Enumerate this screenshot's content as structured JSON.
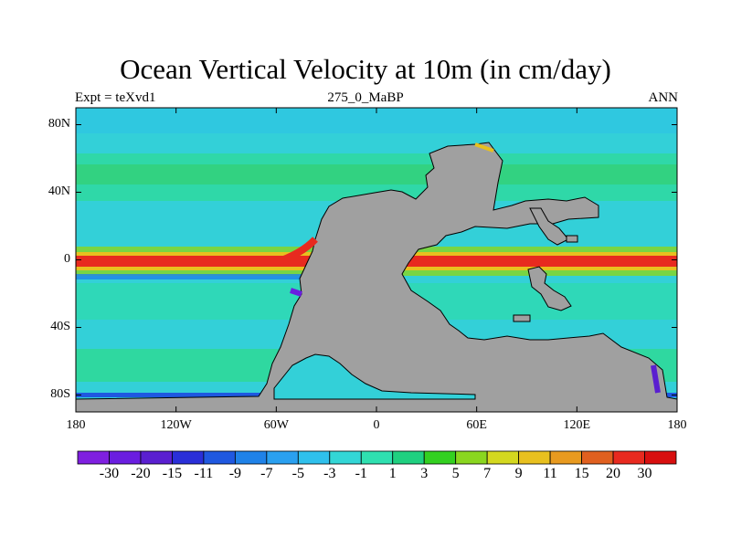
{
  "title": "Ocean Vertical Velocity at 10m (in cm/day)",
  "left_label": "Expt = teXvd1",
  "center_label": "275_0_MaBP",
  "right_label": "ANN",
  "y_ticks": [
    {
      "lat": 80,
      "label": "80N"
    },
    {
      "lat": 40,
      "label": "40N"
    },
    {
      "lat": 0,
      "label": "0"
    },
    {
      "lat": -40,
      "label": "40S"
    },
    {
      "lat": -80,
      "label": "80S"
    }
  ],
  "x_ticks": [
    {
      "lon": -180,
      "label": "180"
    },
    {
      "lon": -120,
      "label": "120W"
    },
    {
      "lon": -60,
      "label": "60W"
    },
    {
      "lon": 0,
      "label": "0"
    },
    {
      "lon": 60,
      "label": "60E"
    },
    {
      "lon": 120,
      "label": "120E"
    },
    {
      "lon": 180,
      "label": "180"
    }
  ],
  "colorbar": {
    "labels": [
      "-30",
      "-20",
      "-15",
      "-11",
      "-9",
      "-7",
      "-5",
      "-3",
      "-1",
      "1",
      "3",
      "5",
      "7",
      "9",
      "11",
      "15",
      "20",
      "30"
    ],
    "colors": [
      "#7f1fe0",
      "#6a1ee0",
      "#5a1fd0",
      "#2a2fd8",
      "#1f58e0",
      "#1f82e8",
      "#2aa0f0",
      "#2fc0ec",
      "#33d6d6",
      "#2fe0b0",
      "#1fd080",
      "#33d020",
      "#8ad61f",
      "#d4d81f",
      "#e8c01f",
      "#e89a1f",
      "#e0601f",
      "#e82a1f",
      "#d80f0f"
    ]
  },
  "land_color": "#a0a0a0"
}
